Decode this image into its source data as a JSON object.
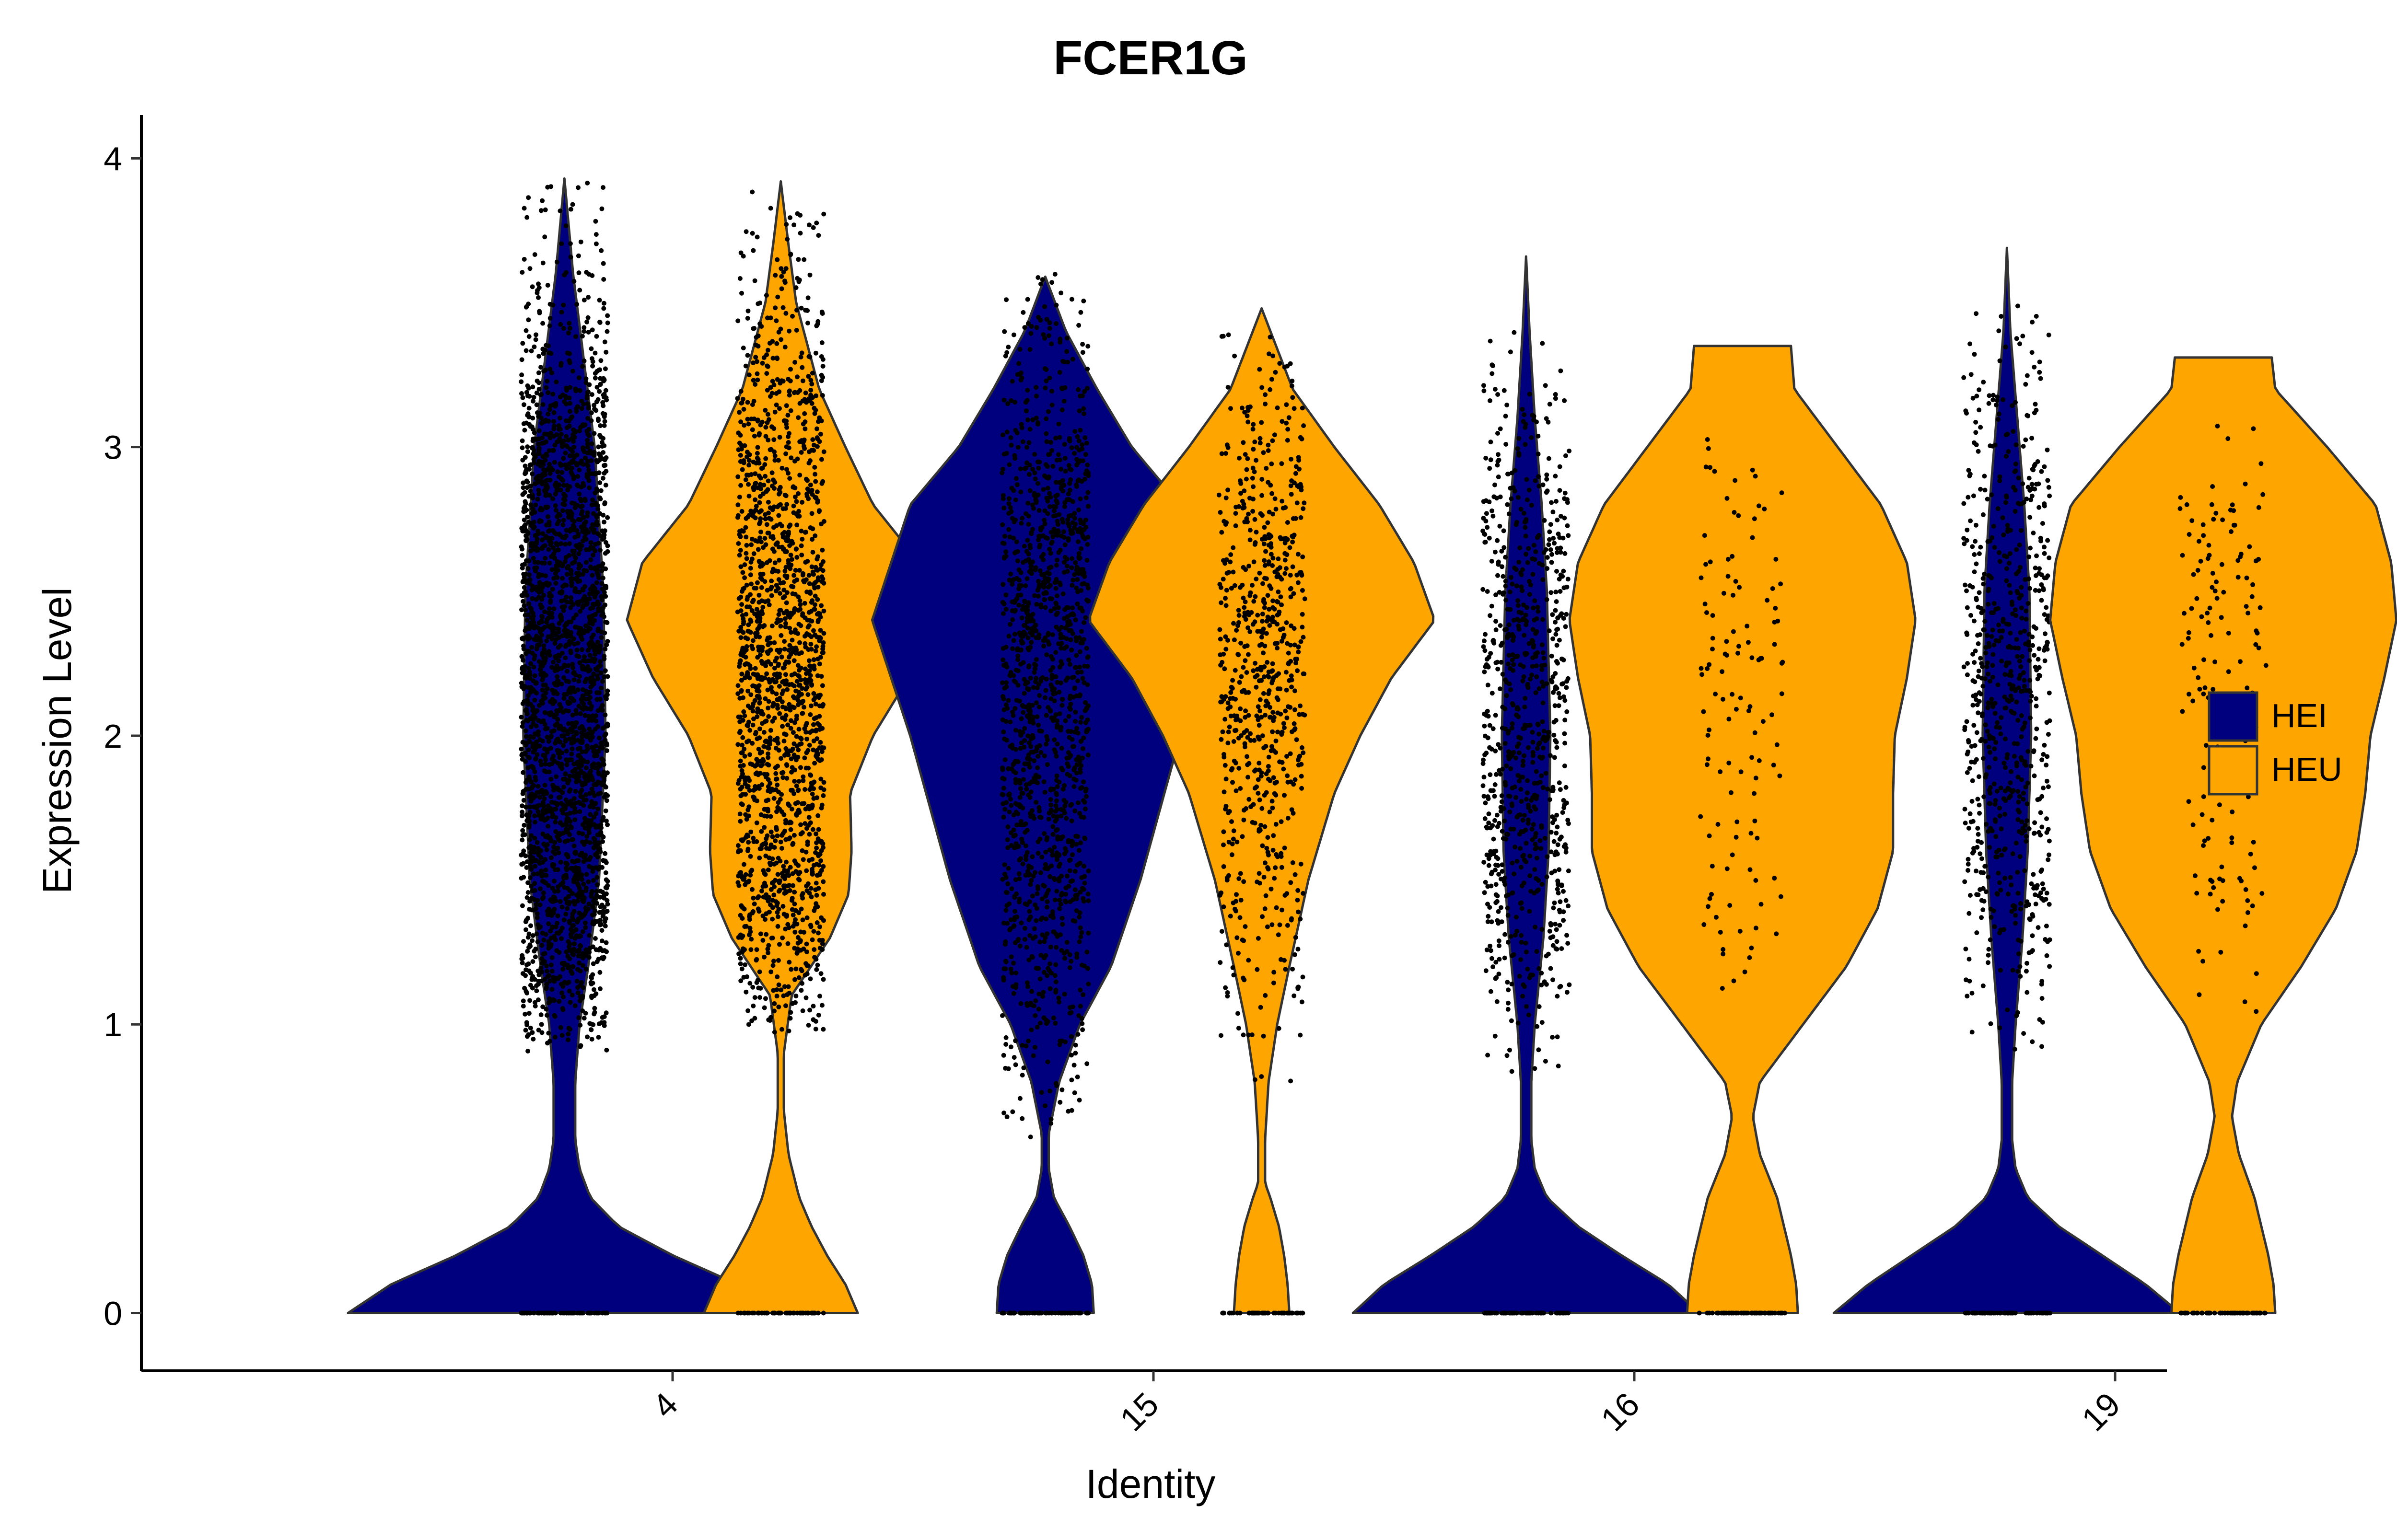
{
  "chart_data": {
    "type": "violin",
    "title": "FCER1G",
    "xlabel": "Identity",
    "ylabel": "Expression Level",
    "ylim": [
      -0.2,
      4.15
    ],
    "yticks": [
      0,
      1,
      2,
      3,
      4
    ],
    "categories": [
      "4",
      "15",
      "16",
      "19"
    ],
    "legend": {
      "position": "right",
      "items": [
        {
          "label": "HEI",
          "color": "#00007F"
        },
        {
          "label": "HEU",
          "color": "#FFA500"
        }
      ]
    },
    "series": [
      {
        "name": "HEI",
        "color": "#00007F"
      },
      {
        "name": "HEU",
        "color": "#FFA500"
      }
    ],
    "violins": [
      {
        "category": "4",
        "group": "HEI",
        "max": 3.93,
        "halfwidth": 0.45,
        "n_dots": 2600,
        "jitter": 0.09,
        "density": [
          [
            0,
            1.0
          ],
          [
            0.1,
            0.8
          ],
          [
            0.2,
            0.5
          ],
          [
            0.3,
            0.25
          ],
          [
            0.4,
            0.12
          ],
          [
            0.5,
            0.07
          ],
          [
            0.6,
            0.05
          ],
          [
            0.8,
            0.05
          ],
          [
            1.0,
            0.07
          ],
          [
            1.2,
            0.11
          ],
          [
            1.5,
            0.16
          ],
          [
            2.0,
            0.19
          ],
          [
            2.5,
            0.18
          ],
          [
            3.0,
            0.14
          ],
          [
            3.3,
            0.09
          ],
          [
            3.6,
            0.04
          ],
          [
            3.93,
            0.0
          ]
        ],
        "dot_dist": [
          [
            0.9,
            0.15
          ],
          [
            1.1,
            0.5
          ],
          [
            1.4,
            1.0
          ],
          [
            2.0,
            1.0
          ],
          [
            2.5,
            1.0
          ],
          [
            3.0,
            0.8
          ],
          [
            3.3,
            0.4
          ],
          [
            3.6,
            0.15
          ],
          [
            3.93,
            0.05
          ]
        ]
      },
      {
        "category": "4",
        "group": "HEU",
        "max": 3.92,
        "halfwidth": 0.32,
        "n_dots": 1700,
        "jitter": 0.09,
        "density": [
          [
            0,
            0.5
          ],
          [
            0.1,
            0.42
          ],
          [
            0.2,
            0.3
          ],
          [
            0.3,
            0.2
          ],
          [
            0.4,
            0.12
          ],
          [
            0.55,
            0.05
          ],
          [
            0.7,
            0.02
          ],
          [
            0.9,
            0.02
          ],
          [
            1.1,
            0.07
          ],
          [
            1.3,
            0.32
          ],
          [
            1.45,
            0.44
          ],
          [
            1.6,
            0.46
          ],
          [
            1.8,
            0.45
          ],
          [
            2.0,
            0.6
          ],
          [
            2.2,
            0.83
          ],
          [
            2.4,
            1.0
          ],
          [
            2.6,
            0.9
          ],
          [
            2.8,
            0.6
          ],
          [
            3.0,
            0.42
          ],
          [
            3.2,
            0.25
          ],
          [
            3.5,
            0.1
          ],
          [
            3.7,
            0.05
          ],
          [
            3.92,
            0.0
          ]
        ],
        "dot_dist": [
          [
            0.95,
            0.1
          ],
          [
            1.2,
            0.5
          ],
          [
            1.5,
            0.9
          ],
          [
            1.8,
            0.9
          ],
          [
            2.0,
            1.0
          ],
          [
            2.4,
            1.0
          ],
          [
            2.8,
            0.8
          ],
          [
            3.2,
            0.6
          ],
          [
            3.5,
            0.2
          ],
          [
            3.9,
            0.05
          ]
        ]
      },
      {
        "category": "15",
        "group": "HEI",
        "max": 3.59,
        "halfwidth": 0.36,
        "n_dots": 1400,
        "jitter": 0.09,
        "density": [
          [
            0,
            0.28
          ],
          [
            0.1,
            0.27
          ],
          [
            0.2,
            0.22
          ],
          [
            0.3,
            0.14
          ],
          [
            0.4,
            0.05
          ],
          [
            0.5,
            0.02
          ],
          [
            0.62,
            0.02
          ],
          [
            0.8,
            0.08
          ],
          [
            1.0,
            0.2
          ],
          [
            1.2,
            0.38
          ],
          [
            1.5,
            0.55
          ],
          [
            2.0,
            0.78
          ],
          [
            2.4,
            1.0
          ],
          [
            2.8,
            0.78
          ],
          [
            3.0,
            0.5
          ],
          [
            3.2,
            0.3
          ],
          [
            3.4,
            0.12
          ],
          [
            3.59,
            0.0
          ]
        ],
        "dot_dist": [
          [
            0.6,
            0.05
          ],
          [
            1.0,
            0.3
          ],
          [
            1.4,
            0.6
          ],
          [
            2.0,
            0.9
          ],
          [
            2.4,
            1.0
          ],
          [
            2.8,
            0.8
          ],
          [
            3.2,
            0.4
          ],
          [
            3.6,
            0.1
          ]
        ]
      },
      {
        "category": "15",
        "group": "HEU",
        "max": 3.48,
        "halfwidth": 0.36,
        "n_dots": 700,
        "jitter": 0.09,
        "density": [
          [
            0,
            0.16
          ],
          [
            0.1,
            0.15
          ],
          [
            0.2,
            0.13
          ],
          [
            0.3,
            0.1
          ],
          [
            0.4,
            0.05
          ],
          [
            0.45,
            0.02
          ],
          [
            0.6,
            0.02
          ],
          [
            0.8,
            0.04
          ],
          [
            1.0,
            0.09
          ],
          [
            1.2,
            0.16
          ],
          [
            1.5,
            0.27
          ],
          [
            1.8,
            0.42
          ],
          [
            2.0,
            0.57
          ],
          [
            2.2,
            0.75
          ],
          [
            2.4,
            1.0
          ],
          [
            2.6,
            0.88
          ],
          [
            2.8,
            0.68
          ],
          [
            3.0,
            0.42
          ],
          [
            3.2,
            0.18
          ],
          [
            3.48,
            0.0
          ]
        ],
        "dot_dist": [
          [
            0.7,
            0.05
          ],
          [
            1.0,
            0.2
          ],
          [
            1.5,
            0.5
          ],
          [
            2.0,
            0.8
          ],
          [
            2.4,
            1.0
          ],
          [
            2.8,
            0.8
          ],
          [
            3.2,
            0.3
          ],
          [
            3.4,
            0.1
          ]
        ]
      },
      {
        "category": "16",
        "group": "HEI",
        "max": 3.66,
        "halfwidth": 0.36,
        "n_dots": 800,
        "jitter": 0.09,
        "density": [
          [
            0,
            1.0
          ],
          [
            0.1,
            0.82
          ],
          [
            0.2,
            0.55
          ],
          [
            0.3,
            0.3
          ],
          [
            0.4,
            0.12
          ],
          [
            0.5,
            0.05
          ],
          [
            0.6,
            0.03
          ],
          [
            0.8,
            0.03
          ],
          [
            1.0,
            0.05
          ],
          [
            1.3,
            0.1
          ],
          [
            1.6,
            0.13
          ],
          [
            2.0,
            0.14
          ],
          [
            2.5,
            0.12
          ],
          [
            2.8,
            0.09
          ],
          [
            3.1,
            0.05
          ],
          [
            3.4,
            0.02
          ],
          [
            3.66,
            0.0
          ]
        ],
        "dot_dist": [
          [
            0.8,
            0.05
          ],
          [
            1.2,
            0.4
          ],
          [
            1.6,
            0.9
          ],
          [
            2.0,
            1.0
          ],
          [
            2.4,
            0.9
          ],
          [
            2.8,
            0.6
          ],
          [
            3.1,
            0.3
          ],
          [
            3.4,
            0.05
          ]
        ]
      },
      {
        "category": "16",
        "group": "HEU",
        "max": 3.35,
        "halfwidth": 0.36,
        "n_dots": 120,
        "jitter": 0.09,
        "density": [
          [
            0,
            0.32
          ],
          [
            0.1,
            0.31
          ],
          [
            0.2,
            0.28
          ],
          [
            0.4,
            0.2
          ],
          [
            0.55,
            0.1
          ],
          [
            0.68,
            0.06
          ],
          [
            0.8,
            0.1
          ],
          [
            1.0,
            0.35
          ],
          [
            1.2,
            0.6
          ],
          [
            1.4,
            0.78
          ],
          [
            1.6,
            0.87
          ],
          [
            1.8,
            0.87
          ],
          [
            2.0,
            0.88
          ],
          [
            2.2,
            0.95
          ],
          [
            2.4,
            1.0
          ],
          [
            2.6,
            0.95
          ],
          [
            2.8,
            0.8
          ],
          [
            3.0,
            0.55
          ],
          [
            3.2,
            0.3
          ],
          [
            3.35,
            0.28
          ]
        ],
        "dot_dist": [
          [
            1.1,
            0.3
          ],
          [
            1.5,
            0.8
          ],
          [
            2.0,
            0.9
          ],
          [
            2.4,
            1.0
          ],
          [
            2.8,
            0.7
          ],
          [
            3.1,
            0.3
          ]
        ]
      },
      {
        "category": "19",
        "group": "HEI",
        "max": 3.69,
        "halfwidth": 0.36,
        "n_dots": 700,
        "jitter": 0.09,
        "density": [
          [
            0,
            1.0
          ],
          [
            0.1,
            0.8
          ],
          [
            0.2,
            0.55
          ],
          [
            0.3,
            0.3
          ],
          [
            0.4,
            0.12
          ],
          [
            0.5,
            0.05
          ],
          [
            0.6,
            0.03
          ],
          [
            0.8,
            0.03
          ],
          [
            1.0,
            0.05
          ],
          [
            1.3,
            0.09
          ],
          [
            1.6,
            0.12
          ],
          [
            2.0,
            0.14
          ],
          [
            2.5,
            0.13
          ],
          [
            2.8,
            0.1
          ],
          [
            3.1,
            0.06
          ],
          [
            3.4,
            0.02
          ],
          [
            3.69,
            0.0
          ]
        ],
        "dot_dist": [
          [
            0.9,
            0.05
          ],
          [
            1.3,
            0.5
          ],
          [
            1.6,
            0.9
          ],
          [
            2.0,
            1.0
          ],
          [
            2.4,
            0.9
          ],
          [
            2.8,
            0.6
          ],
          [
            3.1,
            0.3
          ],
          [
            3.6,
            0.05
          ]
        ]
      },
      {
        "category": "19",
        "group": "HEU",
        "max": 3.31,
        "halfwidth": 0.36,
        "n_dots": 150,
        "jitter": 0.09,
        "density": [
          [
            0,
            0.3
          ],
          [
            0.1,
            0.29
          ],
          [
            0.2,
            0.26
          ],
          [
            0.4,
            0.18
          ],
          [
            0.55,
            0.09
          ],
          [
            0.68,
            0.05
          ],
          [
            0.8,
            0.08
          ],
          [
            1.0,
            0.22
          ],
          [
            1.2,
            0.45
          ],
          [
            1.4,
            0.65
          ],
          [
            1.6,
            0.77
          ],
          [
            1.8,
            0.82
          ],
          [
            2.0,
            0.85
          ],
          [
            2.2,
            0.93
          ],
          [
            2.4,
            1.0
          ],
          [
            2.6,
            0.97
          ],
          [
            2.8,
            0.88
          ],
          [
            3.0,
            0.6
          ],
          [
            3.2,
            0.3
          ],
          [
            3.31,
            0.28
          ]
        ],
        "dot_dist": [
          [
            1.0,
            0.2
          ],
          [
            1.5,
            0.7
          ],
          [
            2.0,
            0.9
          ],
          [
            2.4,
            1.0
          ],
          [
            2.8,
            0.8
          ],
          [
            3.1,
            0.3
          ]
        ]
      }
    ]
  }
}
